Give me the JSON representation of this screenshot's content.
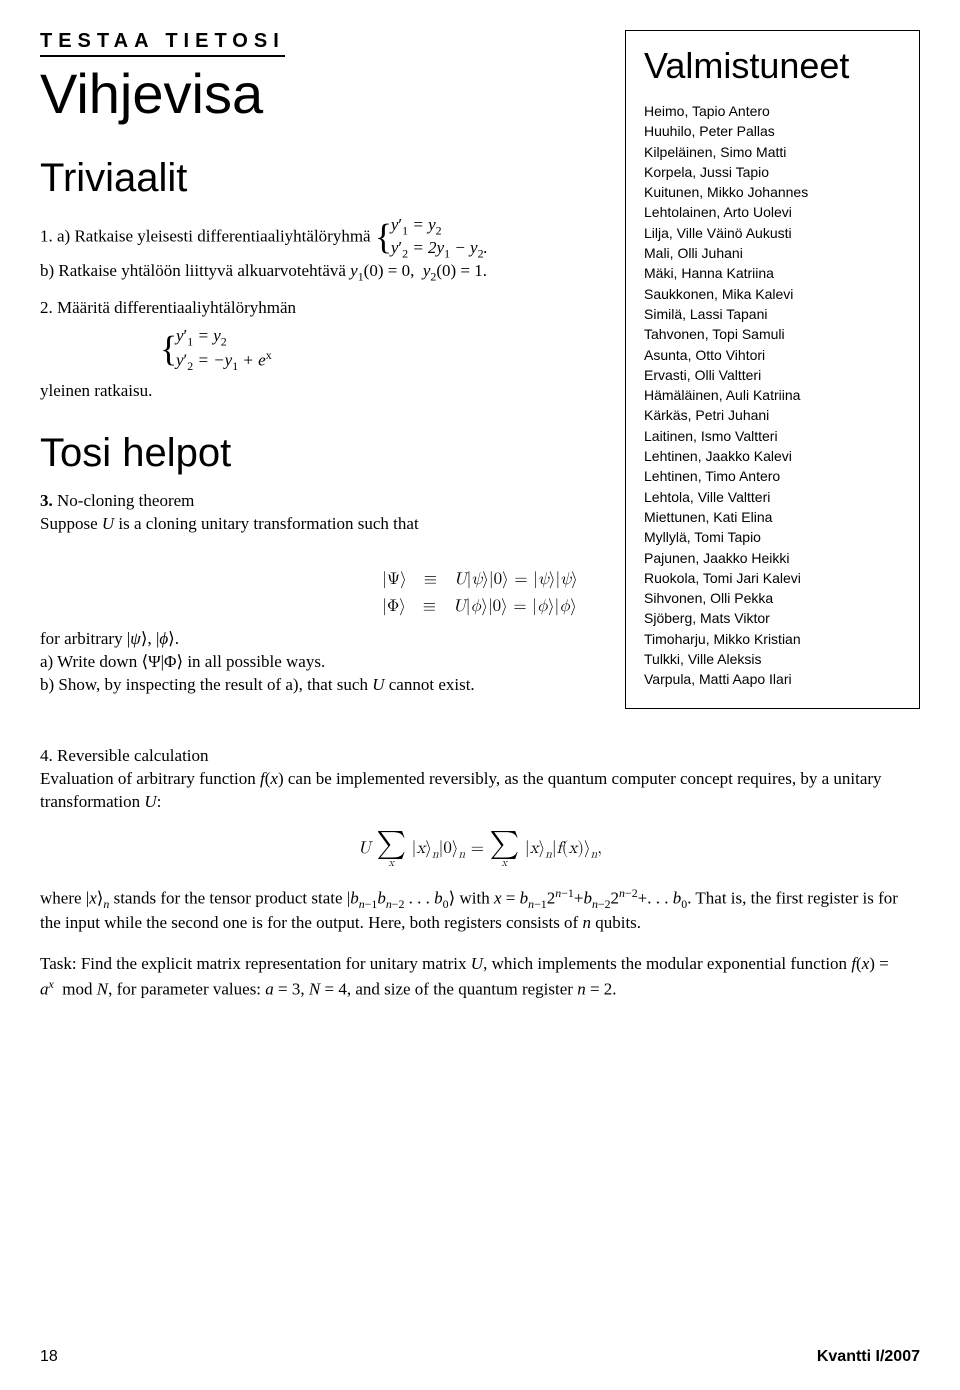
{
  "header_label": "Testaa tietosi",
  "main_title": "Vihjevisa",
  "sections": {
    "triviaalit": "Triviaalit",
    "tosi_helpot": "Tosi helpot"
  },
  "problem1": {
    "line_a_prefix": "1. a) Ratkaise yleisesti differentiaaliyhtälöryhmä ",
    "sys1_row1": "y′₁ = y₂",
    "sys1_row2": "y′₂ = 2y₁ − y₂.",
    "line_b": "b) Ratkaise yhtälöön liittyvä alkuarvotehtävä y₁(0) = 0,  y₂(0) = 1."
  },
  "problem2": {
    "prefix": "2. Määritä differentiaaliyhtälöryhmän",
    "sys_row1": "y′₁ = y₂",
    "sys_row2": "y′₂ = −y₁ + eˣ",
    "suffix": "yleinen ratkaisu."
  },
  "problem3": {
    "title": "3. No-cloning theorem",
    "line1": "Suppose U is a cloning unitary transformation such that",
    "eq1": "|Ψ⟩   ≡   U|ψ⟩|0⟩ = |ψ⟩|ψ⟩",
    "eq2": "|Φ⟩   ≡   U|ϕ⟩|0⟩ = |ϕ⟩|ϕ⟩",
    "after1": "for arbitrary |ψ⟩, |ϕ⟩.",
    "after2": "a) Write down ⟨Ψ|Φ⟩ in all possible ways.",
    "after3": "b) Show, by inspecting the result of a), that such U cannot exist."
  },
  "problem4": {
    "title": "4. Reversible calculation",
    "line1": "Evaluation of arbitrary function f(x) can be implemented reversibly, as the quantum computer concept requires, by a unitary transformation U:",
    "eq_left_pre": "U",
    "eq_left_ket": "|x⟩ₙ|0⟩ₙ =",
    "eq_right_ket": "|x⟩ₙ|f(x)⟩ₙ,",
    "line2": "where |x⟩ₙ stands for the tensor product state |bₙ₋₁bₙ₋₂ . . . b₀⟩ with x = bₙ₋₁2ⁿ⁻¹ + bₙ₋₂2ⁿ⁻² + . . . b₀. That is, the first register is for the input while the second one is for the output. Here, both registers consists of n qubits.",
    "task": "Task: Find the explicit matrix representation for unitary matrix U, which implements the modular exponential function f(x) = aˣ  mod N, for parameter values: a = 3, N = 4, and size of the quantum register n = 2."
  },
  "sidebox": {
    "title": "Valmistuneet",
    "names": [
      "Heimo, Tapio Antero",
      "Huuhilo, Peter Pallas",
      "Kilpeläinen, Simo Matti",
      "Korpela, Jussi Tapio",
      "Kuitunen, Mikko Johannes",
      "Lehtolainen, Arto Uolevi",
      "Lilja, Ville Väinö Aukusti",
      "Mali, Olli Juhani",
      "Mäki, Hanna Katriina",
      "Saukkonen, Mika Kalevi",
      "Similä, Lassi Tapani",
      "Tahvonen, Topi Samuli",
      "Asunta, Otto Vihtori",
      "Ervasti, Olli Valtteri",
      "Hämäläinen, Auli Katriina",
      "Kärkäs, Petri Juhani",
      "Laitinen, Ismo Valtteri",
      "Lehtinen, Jaakko Kalevi",
      "Lehtinen, Timo Antero",
      "Lehtola, Ville Valtteri",
      "Miettunen, Kati Elina",
      "Myllylä, Tomi Tapio",
      "Pajunen, Jaakko Heikki",
      "Ruokola, Tomi Jari Kalevi",
      "Sihvonen, Olli Pekka",
      "Sjöberg, Mats Viktor",
      "Timoharju, Mikko Kristian",
      "Tulkki, Ville Aleksis",
      "Varpula, Matti Aapo Ilari"
    ]
  },
  "footer": {
    "page": "18",
    "issue": "Kvantti I/2007"
  }
}
